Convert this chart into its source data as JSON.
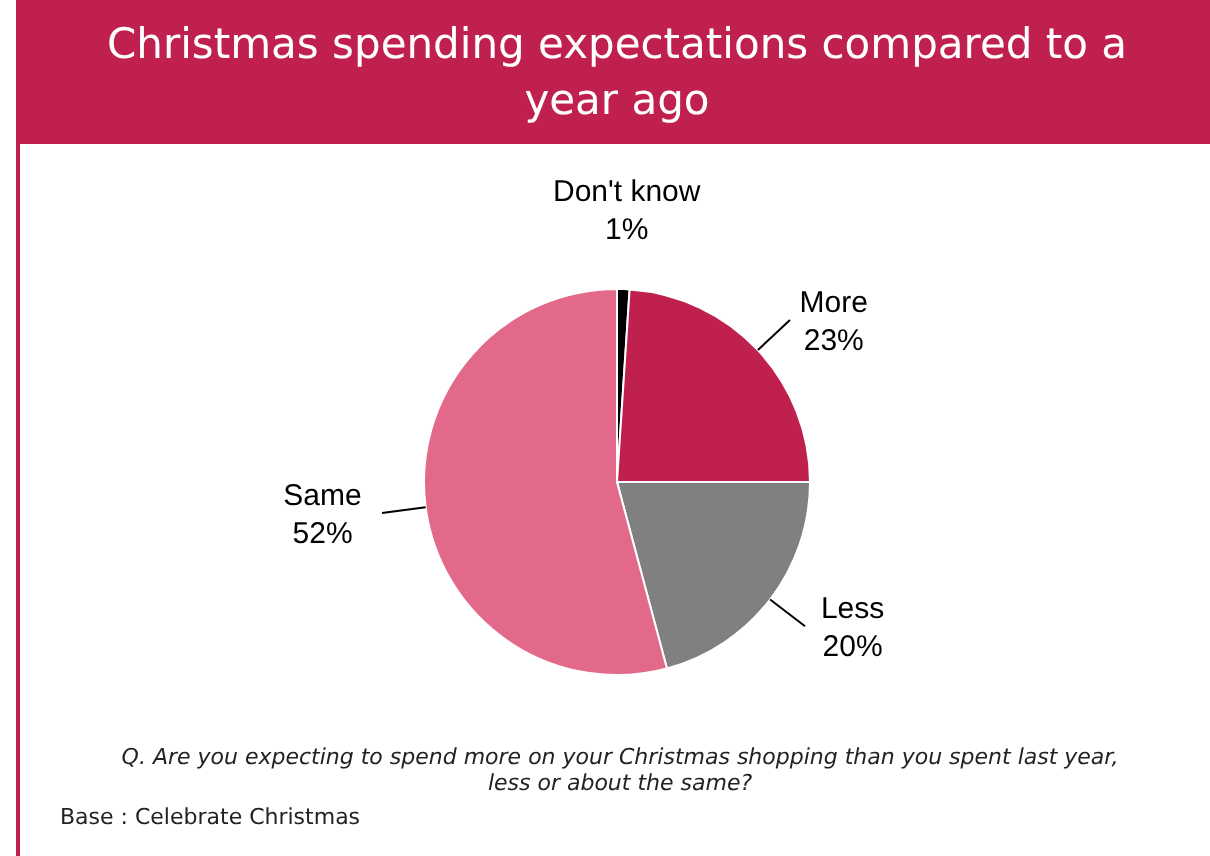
{
  "chart_data": {
    "type": "pie",
    "title": "Christmas spending expectations compared to a year ago",
    "categories": [
      "Don't know",
      "More",
      "Less",
      "Same"
    ],
    "values": [
      1,
      23,
      20,
      52
    ],
    "colors": [
      "#000000",
      "#c0204e",
      "#808080",
      "#e2698a"
    ],
    "value_labels": [
      "1%",
      "23%",
      "20%",
      "52%"
    ],
    "legend": false,
    "annotations": [
      "Q. Are you expecting to spend more on your Christmas shopping than you spent last year, less or about the same?",
      "Base : Celebrate Christmas"
    ]
  }
}
